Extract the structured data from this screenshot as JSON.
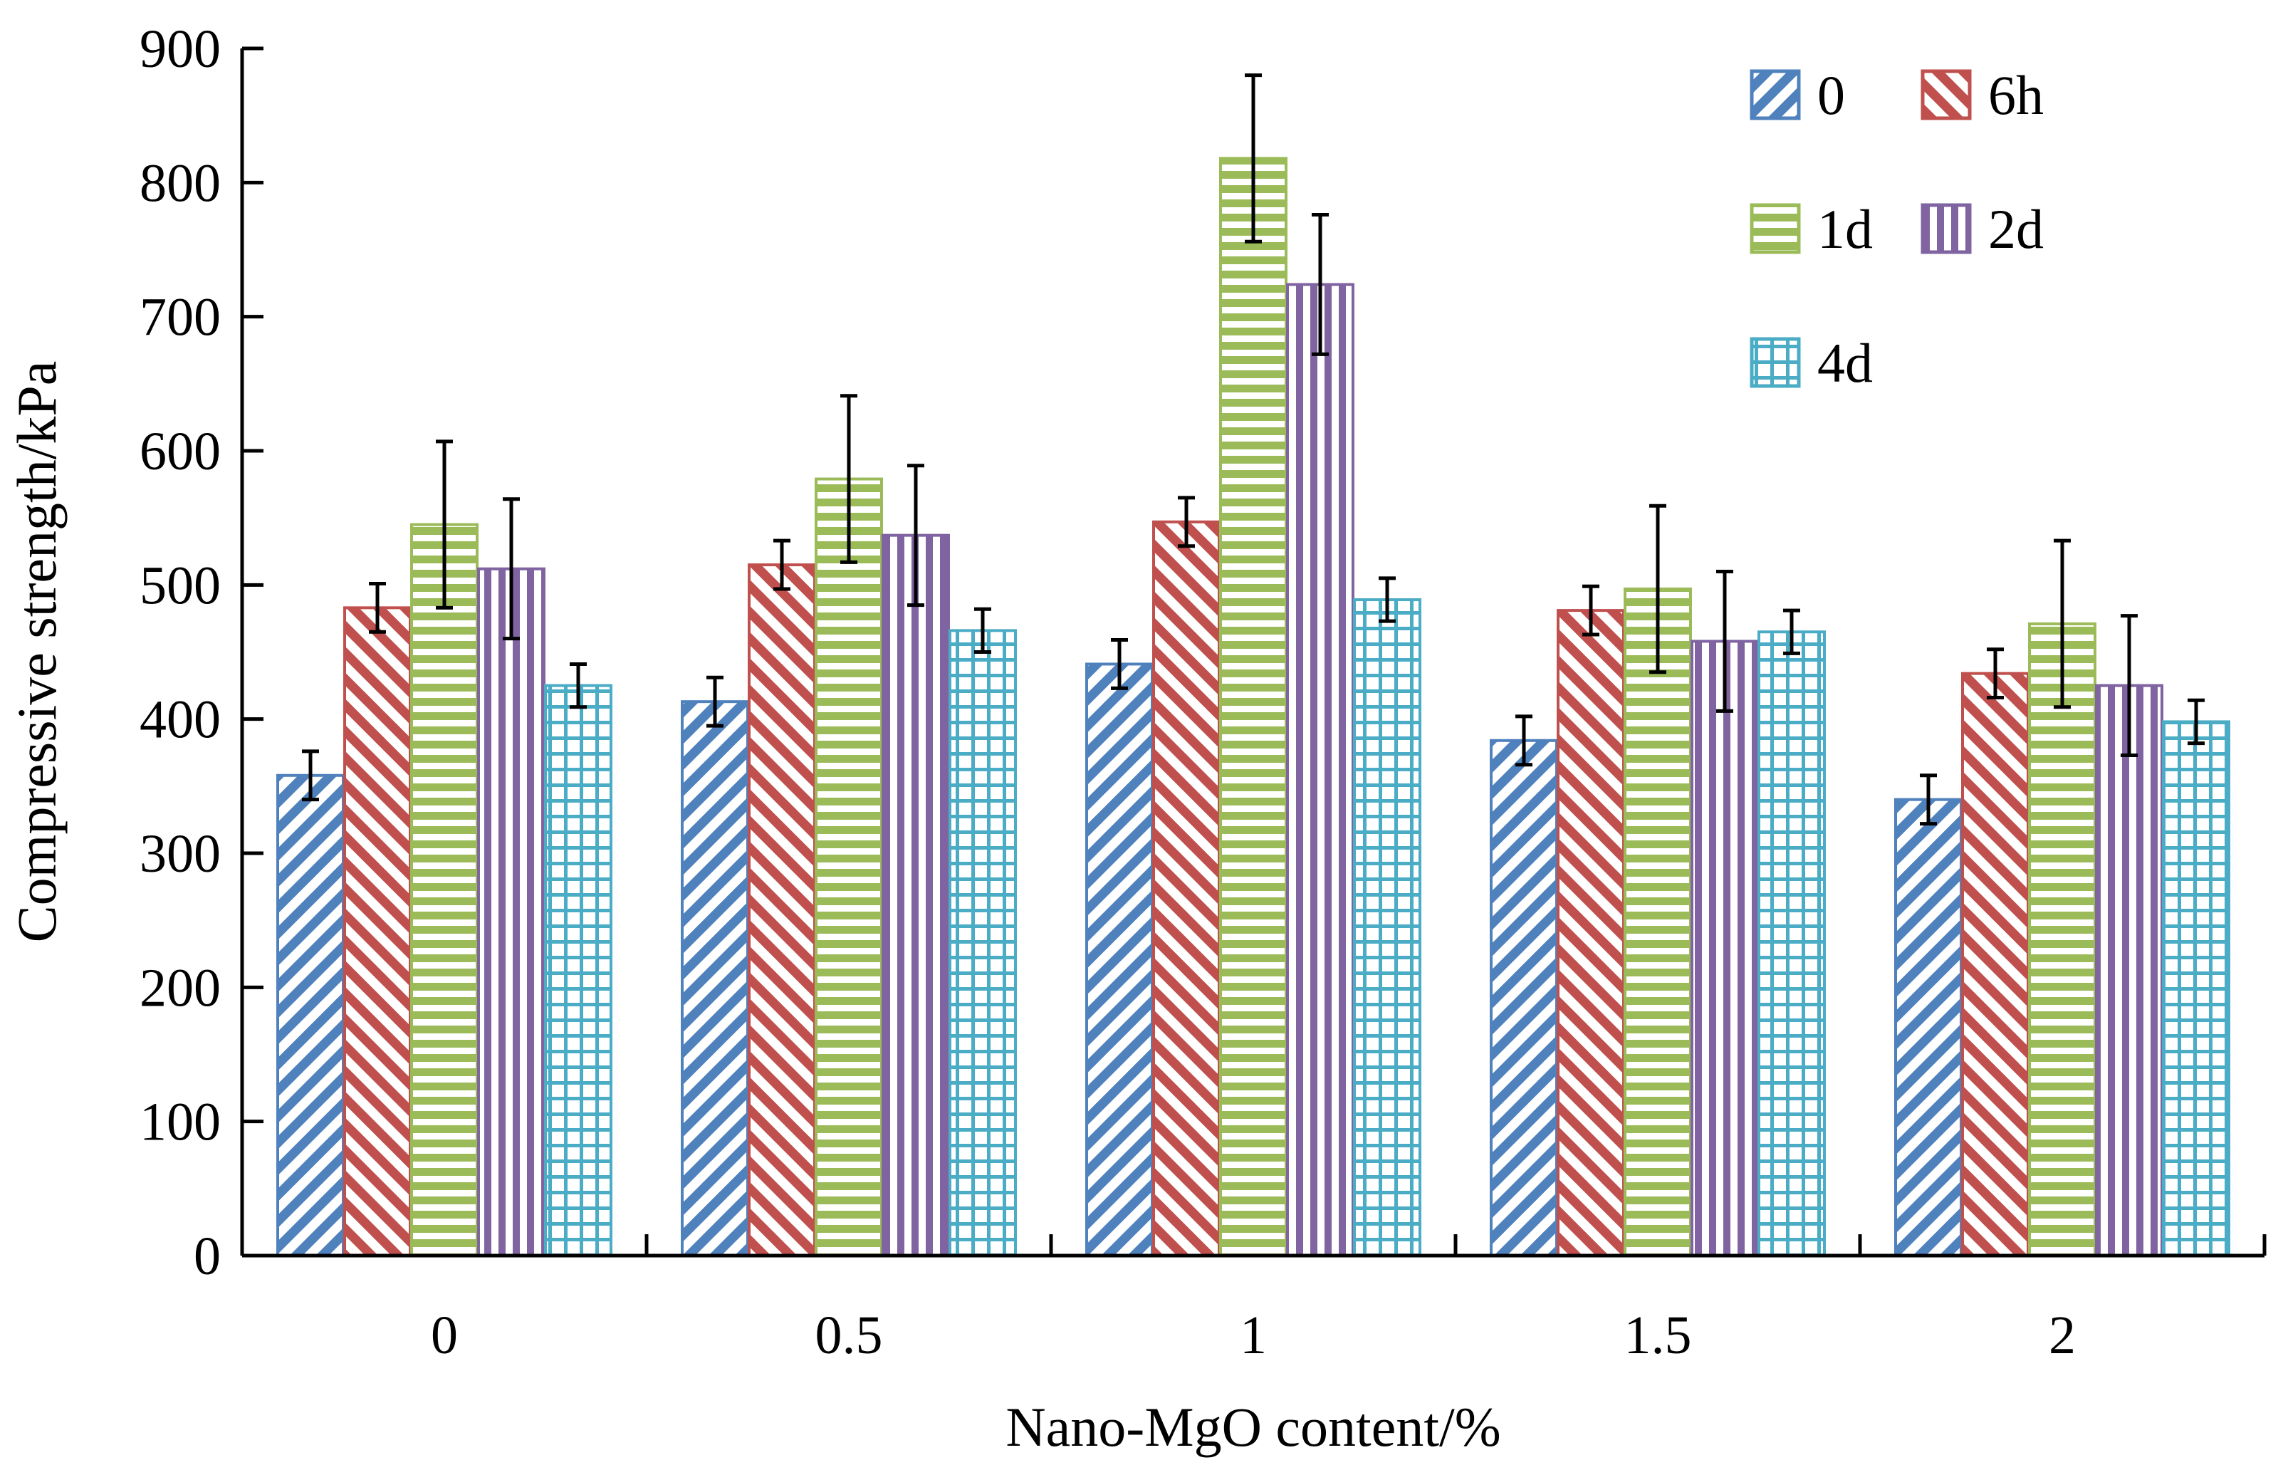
{
  "chart_data": {
    "type": "bar",
    "title": "",
    "xlabel": "Nano-MgO content/%",
    "ylabel": "Compressive strength/kPa",
    "ylim": [
      0,
      900
    ],
    "yticks": [
      0,
      100,
      200,
      300,
      400,
      500,
      600,
      700,
      800,
      900
    ],
    "ytick_labels": [
      "0",
      "100",
      "200",
      "300",
      "400",
      "500",
      "600",
      "700",
      "800",
      "900"
    ],
    "categories": [
      "0",
      "0.5",
      "1",
      "1.5",
      "2"
    ],
    "legend_position": "top-right",
    "series": [
      {
        "name": "0",
        "color": "#4f81bd",
        "pattern": "diagonal-up",
        "values": [
          358,
          413,
          441,
          384,
          340
        ],
        "errors": [
          18,
          18,
          18,
          18,
          18
        ]
      },
      {
        "name": "6h",
        "color": "#c0504d",
        "pattern": "diagonal-down",
        "values": [
          483,
          515,
          547,
          481,
          434
        ],
        "errors": [
          18,
          18,
          18,
          18,
          18
        ]
      },
      {
        "name": "1d",
        "color": "#9bbb59",
        "pattern": "horizontal",
        "values": [
          545,
          579,
          818,
          497,
          471
        ],
        "errors": [
          62,
          62,
          62,
          62,
          62
        ]
      },
      {
        "name": "2d",
        "color": "#8064a2",
        "pattern": "vertical",
        "values": [
          512,
          537,
          724,
          458,
          425
        ],
        "errors": [
          52,
          52,
          52,
          52,
          52
        ]
      },
      {
        "name": "4d",
        "color": "#4bacc6",
        "pattern": "grid",
        "values": [
          425,
          466,
          489,
          465,
          398
        ],
        "errors": [
          16,
          16,
          16,
          16,
          16
        ]
      }
    ]
  }
}
